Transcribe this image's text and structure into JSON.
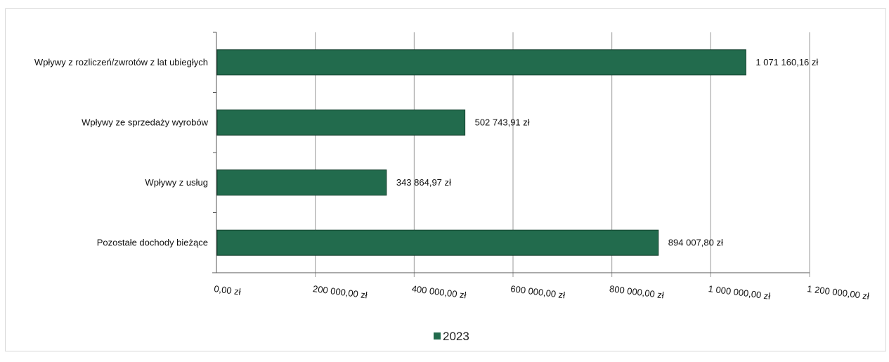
{
  "chart_data": {
    "type": "bar",
    "orientation": "horizontal",
    "categories": [
      "Wpływy z rozliczeń/zwrotów z lat ubiegłych",
      "Wpływy ze sprzedaży wyrobów",
      "Wpływy z usług",
      "Pozostałe dochody bieżące"
    ],
    "series": [
      {
        "name": "2023",
        "color": "#226b4d",
        "values": [
          1071160.16,
          502743.91,
          343864.97,
          894007.8
        ],
        "value_labels": [
          "1 071 160,16 zł",
          "502 743,91 zł",
          "343 864,97 zł",
          "894 007,80 zł"
        ]
      }
    ],
    "xlim": [
      0,
      1200000
    ],
    "xticks": [
      0,
      200000,
      400000,
      600000,
      800000,
      1000000,
      1200000
    ],
    "xtick_labels": [
      "0,00 zł",
      "200 000,00 zł",
      "400 000,00 zł",
      "600 000,00 zł",
      "800 000,00 zł",
      "1 000 000,00 zł",
      "1 200 000,00 zł"
    ],
    "grid": "vertical",
    "legend": {
      "placement": "bottom-center",
      "label": "2023"
    }
  }
}
